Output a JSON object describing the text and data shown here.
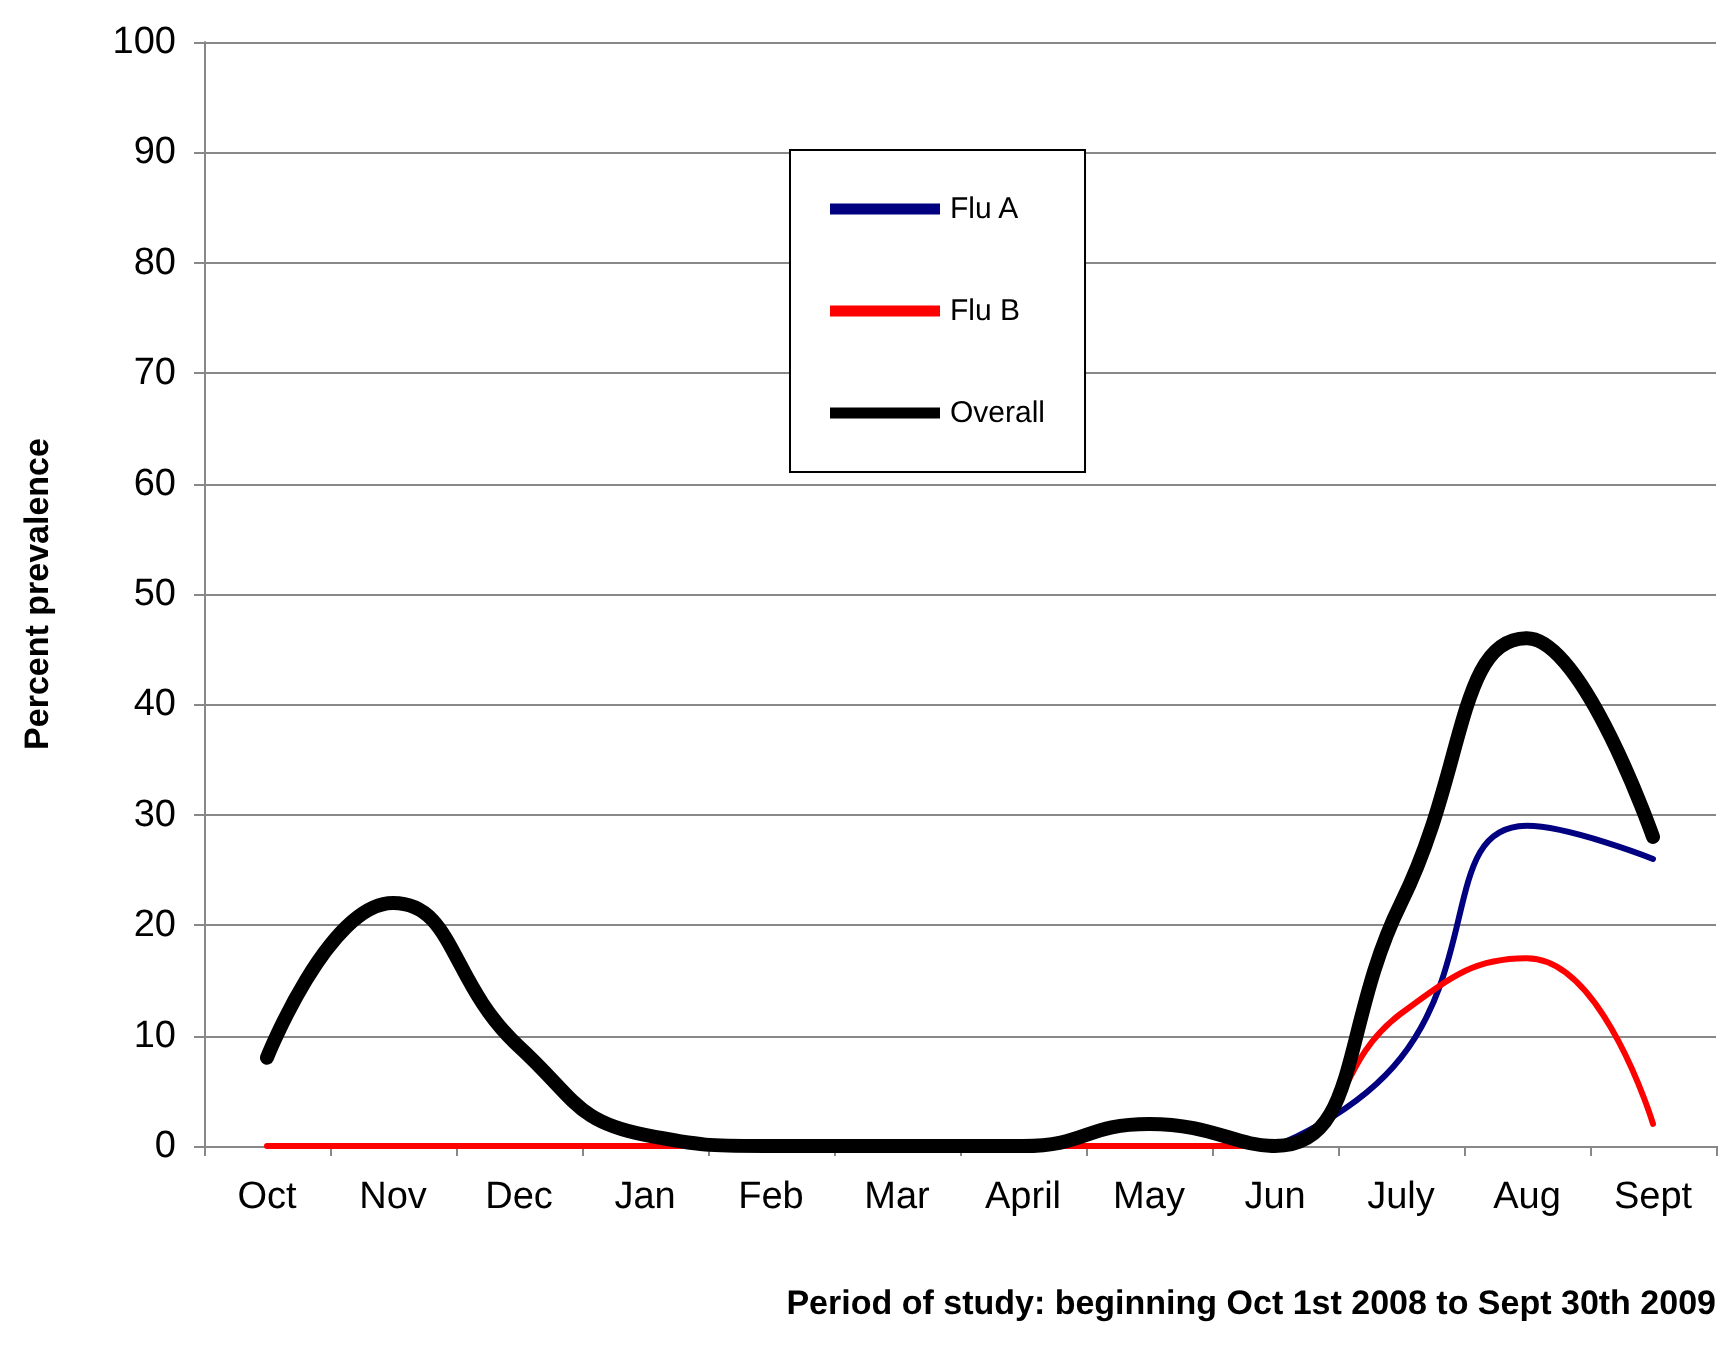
{
  "chart_data": {
    "type": "line",
    "categories": [
      "Oct",
      "Nov",
      "Dec",
      "Jan",
      "Feb",
      "Mar",
      "April",
      "May",
      "Jun",
      "July",
      "Aug",
      "Sept"
    ],
    "series": [
      {
        "name": "Flu A",
        "color": "#000080",
        "values": [
          null,
          null,
          null,
          null,
          null,
          null,
          null,
          null,
          0,
          8,
          29,
          26
        ]
      },
      {
        "name": "Flu B",
        "color": "#ff0000",
        "values": [
          0,
          0,
          0,
          0,
          0,
          0,
          0,
          0,
          0,
          12,
          17,
          2
        ]
      },
      {
        "name": "Overall",
        "color": "#000000",
        "values": [
          8,
          22,
          9,
          1,
          0,
          0,
          0,
          2,
          0,
          22,
          46,
          28
        ]
      }
    ],
    "xlabel": "Period of study: beginning Oct 1st 2008 to Sept 30th 2009",
    "ylabel": "Percent prevalence",
    "ylim": [
      0,
      100
    ],
    "yticks": [
      0,
      10,
      20,
      30,
      40,
      50,
      60,
      70,
      80,
      90,
      100
    ],
    "grid": "y",
    "legend": "top",
    "marker": "none",
    "line_style": "solid"
  }
}
